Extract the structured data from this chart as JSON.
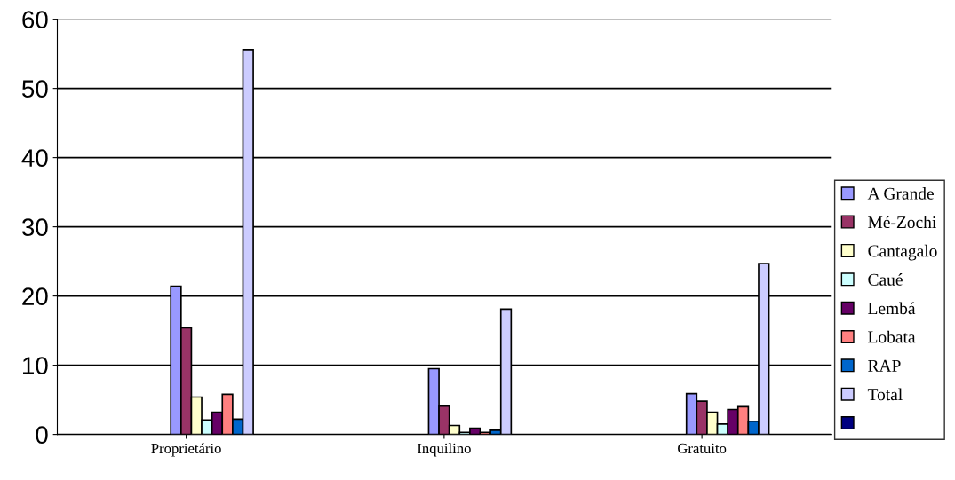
{
  "chart_data": {
    "type": "bar",
    "categories": [
      "Proprietário",
      "Inquilino",
      "Gratuito"
    ],
    "series": [
      {
        "name": "A Grande",
        "color": "#9999ff",
        "values": [
          21.4,
          9.5,
          5.9
        ]
      },
      {
        "name": "Mé-Zochi",
        "color": "#993366",
        "values": [
          15.4,
          4.1,
          4.8
        ]
      },
      {
        "name": "Cantagalo",
        "color": "#ffffcc",
        "values": [
          5.4,
          1.3,
          3.2
        ]
      },
      {
        "name": "Caué",
        "color": "#ccffff",
        "values": [
          2.1,
          0.3,
          1.5
        ]
      },
      {
        "name": "Lembá",
        "color": "#660066",
        "values": [
          3.2,
          0.9,
          3.6
        ]
      },
      {
        "name": "Lobata",
        "color": "#ff8080",
        "values": [
          5.8,
          0.3,
          4.0
        ]
      },
      {
        "name": "RAP",
        "color": "#0066cc",
        "values": [
          2.2,
          0.6,
          1.9
        ]
      },
      {
        "name": "Total",
        "color": "#ccccff",
        "values": [
          55.6,
          18.1,
          24.7
        ]
      },
      {
        "color": "#000080",
        "values": [
          null,
          null,
          null
        ]
      }
    ],
    "ylim": [
      0,
      60
    ],
    "yticks": [
      0,
      10,
      20,
      30,
      40,
      50,
      60
    ],
    "grid": "y",
    "legend": "right"
  }
}
